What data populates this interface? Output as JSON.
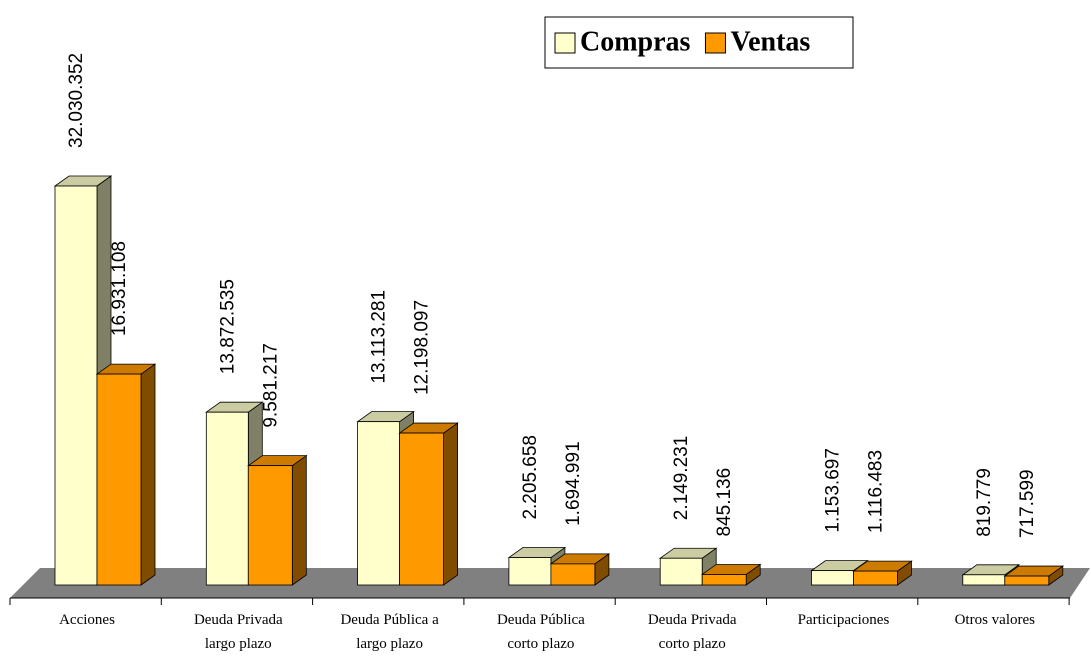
{
  "chart_data": {
    "type": "bar3d",
    "categories": [
      "Acciones",
      "Deuda Privada\nlargo plazo",
      "Deuda Pública a\nlargo plazo",
      "Deuda Pública\ncorto plazo",
      "Deuda Privada\ncorto plazo",
      "Participaciones",
      "Otros valores"
    ],
    "series": [
      {
        "name": "Compras",
        "color": "#ffffcc",
        "values": [
          32030352,
          13872535,
          13113281,
          2205658,
          2149231,
          1153697,
          819779
        ],
        "value_labels": [
          "32.030.352",
          "13.872.535",
          "13.113.281",
          "2.205.658",
          "2.149.231",
          "1.153.697",
          "819.779"
        ]
      },
      {
        "name": "Ventas",
        "color": "#ff9900",
        "values": [
          16931108,
          9581217,
          12198097,
          1694991,
          845136,
          1116483,
          717599
        ],
        "value_labels": [
          "16.931.108",
          "9.581.217",
          "12.198.097",
          "1.694.991",
          "845.136",
          "1.116.483",
          "717.599"
        ]
      }
    ],
    "legend": "top-right"
  }
}
